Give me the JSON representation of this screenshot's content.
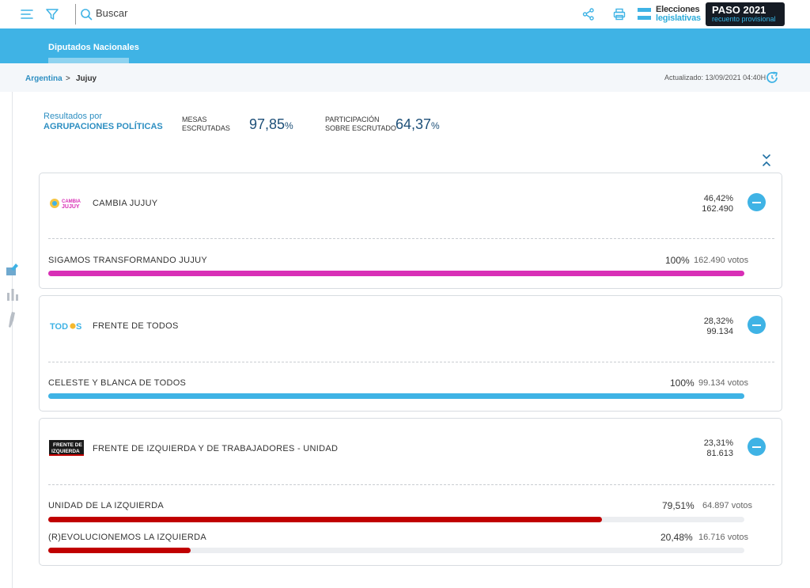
{
  "header": {
    "search_placeholder": "Buscar",
    "brand_line1": "Elecciones",
    "brand_line2": "legislativas",
    "paso_title": "PASO 2021",
    "paso_subtitle": "recuento provisional"
  },
  "tabs": {
    "active_label": "Diputados Nacionales"
  },
  "breadcrumb": {
    "root": "Argentina",
    "separator": ">",
    "current": "Jujuy"
  },
  "updated": "Actualizado: 13/09/2021 04:40H",
  "summary": {
    "label_line1": "Resultados por",
    "label_line2": "AGRUPACIONES POLÍTICAS",
    "mesas_label1": "MESAS",
    "mesas_label2": "ESCRUTADAS",
    "mesas_value": "97,85",
    "participacion_label1": "PARTICIPACIÓN",
    "participacion_label2": "SOBRE ESCRUTADO",
    "participacion_value": "64,37",
    "pct_sign": "%"
  },
  "parties": [
    {
      "name": "CAMBIA JUJUY",
      "pct": "46,42%",
      "votes": "162.490",
      "logo_text": "CAMBIA JUJUY",
      "lists": [
        {
          "name": "SIGAMOS TRANSFORMANDO JUJUY",
          "pct": "100%",
          "votes": "162.490 votos",
          "share": 1.0,
          "color": "#d82fb6"
        }
      ]
    },
    {
      "name": "FRENTE DE TODOS",
      "pct": "28,32%",
      "votes": "99.134",
      "logo_text": "TODOS",
      "lists": [
        {
          "name": "CELESTE Y BLANCA DE TODOS",
          "pct": "100%",
          "votes": "99.134 votos",
          "share": 1.0,
          "color": "#3fb3e5"
        }
      ]
    },
    {
      "name": "FRENTE DE IZQUIERDA Y DE TRABAJADORES - UNIDAD",
      "pct": "23,31%",
      "votes": "81.613",
      "logo_text": "FRENTE DE IZQUIERDA",
      "lists": [
        {
          "name": "UNIDAD DE LA IZQUIERDA",
          "pct": "79,51%",
          "votes": "64.897 votos",
          "share": 0.7951,
          "color": "#c00000"
        },
        {
          "name": "(R)EVOLUCIONEMOS LA IZQUIERDA",
          "pct": "20,48%",
          "votes": "16.716 votos",
          "share": 0.2048,
          "color": "#c00000"
        }
      ]
    }
  ],
  "colors": {
    "accent": "#3fb3e5",
    "navy": "#1d4f78",
    "dark": "#151b24"
  }
}
